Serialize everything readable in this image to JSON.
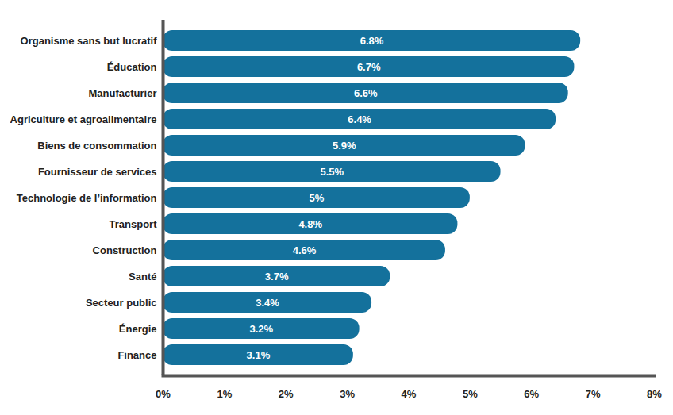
{
  "chart_data": {
    "type": "bar",
    "orientation": "horizontal",
    "categories": [
      "Organisme sans but lucratif",
      "Éducation",
      "Manufacturier",
      "Agriculture et agroalimentaire",
      "Biens de consommation",
      "Fournisseur de services",
      "Technologie de l’information",
      "Transport",
      "Construction",
      "Santé",
      "Secteur public",
      "Énergie",
      "Finance"
    ],
    "values": [
      6.8,
      6.7,
      6.6,
      6.4,
      5.9,
      5.5,
      5,
      4.8,
      4.6,
      3.7,
      3.4,
      3.2,
      3.1
    ],
    "value_labels": [
      "6.8%",
      "6.7%",
      "6.6%",
      "6.4%",
      "5.9%",
      "5.5%",
      "5%",
      "4.8%",
      "4.6%",
      "3.7%",
      "3.4%",
      "3.2%",
      "3.1%"
    ],
    "data_labels": true,
    "color": "#14719c",
    "xlim": [
      0,
      8
    ],
    "xticks": [
      {
        "value": 0,
        "label": "0%"
      },
      {
        "value": 1,
        "label": "1%"
      },
      {
        "value": 2,
        "label": "2%"
      },
      {
        "value": 3,
        "label": "3%"
      },
      {
        "value": 4,
        "label": "4%"
      },
      {
        "value": 5,
        "label": "5%"
      },
      {
        "value": 6,
        "label": "6%"
      },
      {
        "value": 7,
        "label": "7%"
      },
      {
        "value": 8,
        "label": "8%"
      }
    ],
    "grid": false
  }
}
